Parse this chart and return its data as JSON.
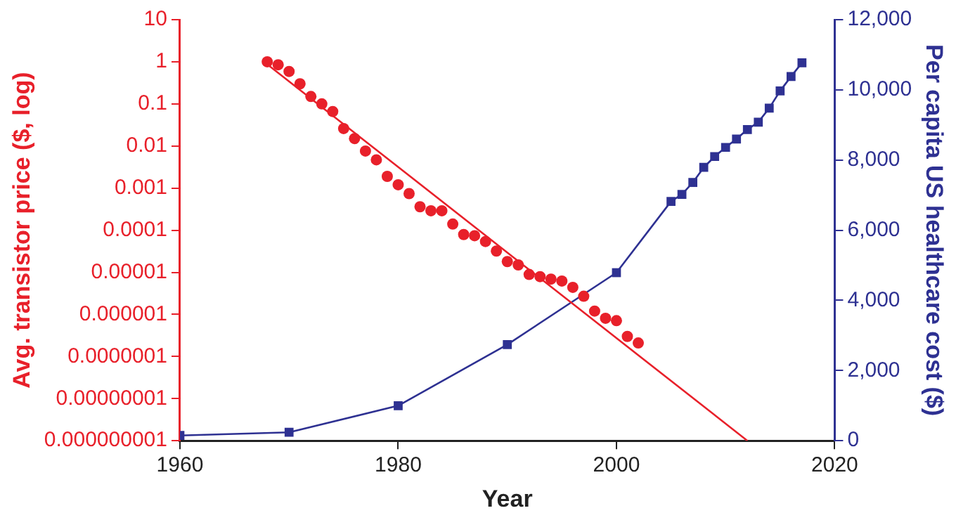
{
  "chart_data": {
    "type": "scatter",
    "xlabel": "Year",
    "ylabel": "Avg. transistor price ($, log)",
    "y2label": "Per capita US healthcare cost ($)",
    "xlim": [
      1960,
      2020
    ],
    "xticks": [
      1960,
      1980,
      2000,
      2020
    ],
    "ylim": [
      1e-09,
      10
    ],
    "log": "y",
    "yticks": [
      {
        "value": 10,
        "label": "10"
      },
      {
        "value": 1,
        "label": "1"
      },
      {
        "value": 0.1,
        "label": "0.1"
      },
      {
        "value": 0.01,
        "label": "0.01"
      },
      {
        "value": 0.001,
        "label": "0.001"
      },
      {
        "value": 0.0001,
        "label": "0.0001"
      },
      {
        "value": 1e-05,
        "label": "0.00001"
      },
      {
        "value": 1e-06,
        "label": "0.000001"
      },
      {
        "value": 1e-07,
        "label": "0.0000001"
      },
      {
        "value": 1e-08,
        "label": "0.00000001"
      },
      {
        "value": 1e-09,
        "label": "0.000000001"
      }
    ],
    "y2lim": [
      0,
      12000
    ],
    "y2ticks": [
      {
        "value": 0,
        "label": "0"
      },
      {
        "value": 2000,
        "label": "2,000"
      },
      {
        "value": 4000,
        "label": "4,000"
      },
      {
        "value": 6000,
        "label": "6,000"
      },
      {
        "value": 8000,
        "label": "8,000"
      },
      {
        "value": 10000,
        "label": "10,000"
      },
      {
        "value": 12000,
        "label": "12,000"
      }
    ],
    "grid": false,
    "legend": false,
    "series": [
      {
        "color": "#e8202a",
        "marker": "circle",
        "x": [
          1968,
          1969,
          1970,
          1971,
          1972,
          1973,
          1974,
          1975,
          1976,
          1977,
          1978,
          1979,
          1980,
          1981,
          1982,
          1983,
          1984,
          1985,
          1986,
          1987,
          1988,
          1989,
          1990,
          1991,
          1992,
          1993,
          1994,
          1995,
          1996,
          1997,
          1998,
          1999,
          2000,
          2001,
          2002
        ],
        "values": [
          1,
          0.85,
          0.59,
          0.3,
          0.15,
          0.1,
          0.066,
          0.026,
          0.015,
          0.0076,
          0.0047,
          0.0019,
          0.0012,
          0.00074,
          0.00036,
          0.00029,
          0.00029,
          0.00014,
          7.9e-05,
          7.4e-05,
          5.4e-05,
          3.2e-05,
          1.8e-05,
          1.5e-05,
          8.9e-06,
          7.9e-06,
          6.9e-06,
          6.2e-06,
          4.4e-06,
          2.7e-06,
          1.2e-06,
          8.1e-07,
          7.1e-07,
          3e-07,
          2.1e-07
        ]
      },
      {
        "type": "line",
        "color": "#e8202a",
        "marker": "none",
        "x": [
          1968,
          2012
        ],
        "values": [
          0.87,
          1e-09
        ]
      },
      {
        "type": "line",
        "color": "#2e3192",
        "marker": "square",
        "axis": "y2",
        "x": [
          1960,
          1970,
          1980,
          1990,
          2000,
          2005,
          2006,
          2007,
          2008,
          2009,
          2010,
          2011,
          2012,
          2013,
          2014,
          2015,
          2016,
          2017
        ],
        "values": [
          150,
          240,
          1000,
          2740,
          4790,
          6820,
          7020,
          7360,
          7790,
          8100,
          8360,
          8600,
          8870,
          9080,
          9480,
          9970,
          10380,
          10770
        ]
      }
    ]
  }
}
